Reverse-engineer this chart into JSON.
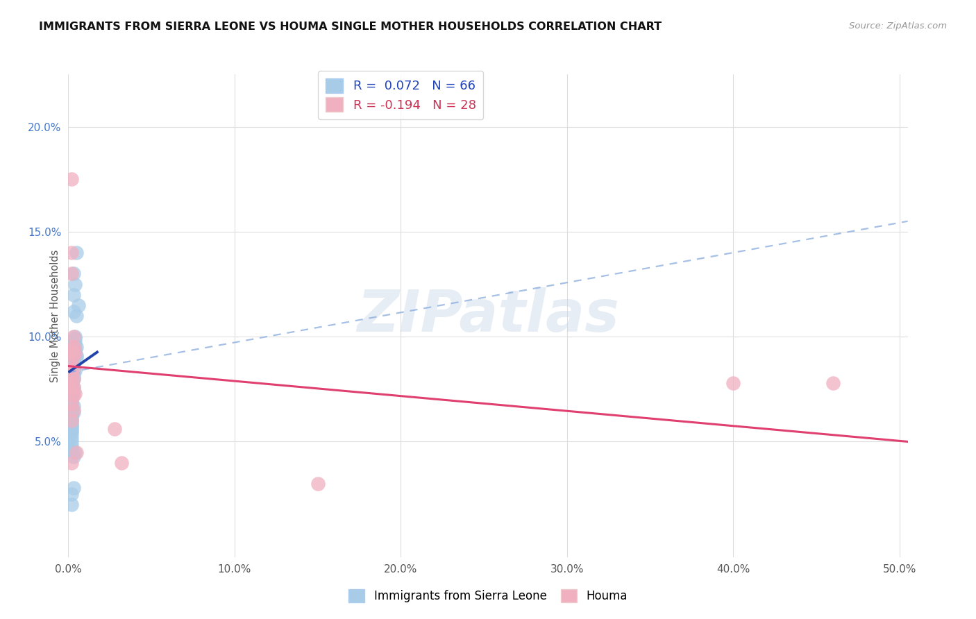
{
  "title": "IMMIGRANTS FROM SIERRA LEONE VS HOUMA SINGLE MOTHER HOUSEHOLDS CORRELATION CHART",
  "source": "Source: ZipAtlas.com",
  "ylabel": "Single Mother Households",
  "xlim": [
    0.0,
    0.505
  ],
  "ylim": [
    -0.005,
    0.225
  ],
  "xtick_vals": [
    0.0,
    0.1,
    0.2,
    0.3,
    0.4,
    0.5
  ],
  "xtick_labels": [
    "0.0%",
    "10.0%",
    "20.0%",
    "30.0%",
    "40.0%",
    "50.0%"
  ],
  "ytick_vals": [
    0.05,
    0.1,
    0.15,
    0.2
  ],
  "ytick_labels": [
    "5.0%",
    "10.0%",
    "15.0%",
    "20.0%"
  ],
  "blue_R": 0.072,
  "blue_N": 66,
  "pink_R": -0.194,
  "pink_N": 28,
  "blue_scatter_color": "#a8cce8",
  "pink_scatter_color": "#f0b0c0",
  "blue_line_color": "#2244aa",
  "blue_dash_color": "#88aadd",
  "pink_line_color": "#e04070",
  "watermark_text": "ZIPatlas",
  "legend_label_blue": "Immigrants from Sierra Leone",
  "legend_label_pink": "Houma",
  "blue_x": [
    0.002,
    0.003,
    0.002,
    0.004,
    0.005,
    0.002,
    0.003,
    0.004,
    0.002,
    0.003,
    0.002,
    0.002,
    0.003,
    0.002,
    0.003,
    0.002,
    0.003,
    0.002,
    0.002,
    0.003,
    0.002,
    0.002,
    0.003,
    0.002,
    0.004,
    0.005,
    0.002,
    0.003,
    0.002,
    0.004,
    0.002,
    0.003,
    0.002,
    0.005,
    0.002,
    0.003,
    0.002,
    0.002,
    0.004,
    0.003,
    0.002,
    0.002,
    0.003,
    0.002,
    0.004,
    0.003,
    0.002,
    0.003,
    0.004,
    0.002,
    0.005,
    0.002,
    0.003,
    0.006,
    0.002,
    0.003,
    0.002,
    0.004,
    0.002,
    0.003,
    0.005,
    0.004,
    0.003,
    0.002,
    0.002,
    0.003
  ],
  "blue_y": [
    0.08,
    0.085,
    0.09,
    0.092,
    0.095,
    0.082,
    0.088,
    0.093,
    0.078,
    0.083,
    0.075,
    0.072,
    0.076,
    0.079,
    0.087,
    0.073,
    0.081,
    0.068,
    0.07,
    0.074,
    0.065,
    0.063,
    0.067,
    0.071,
    0.084,
    0.091,
    0.077,
    0.086,
    0.069,
    0.094,
    0.062,
    0.08,
    0.066,
    0.09,
    0.06,
    0.064,
    0.058,
    0.061,
    0.097,
    0.089,
    0.055,
    0.057,
    0.085,
    0.059,
    0.099,
    0.096,
    0.056,
    0.098,
    0.1,
    0.054,
    0.11,
    0.052,
    0.112,
    0.115,
    0.05,
    0.12,
    0.048,
    0.125,
    0.046,
    0.13,
    0.14,
    0.045,
    0.043,
    0.02,
    0.025,
    0.028
  ],
  "pink_x": [
    0.002,
    0.002,
    0.002,
    0.002,
    0.003,
    0.003,
    0.002,
    0.003,
    0.004,
    0.002,
    0.003,
    0.002,
    0.003,
    0.003,
    0.004,
    0.002,
    0.003,
    0.005,
    0.002,
    0.003,
    0.003,
    0.002,
    0.4,
    0.46,
    0.002,
    0.028,
    0.032,
    0.15
  ],
  "pink_y": [
    0.175,
    0.14,
    0.13,
    0.093,
    0.1,
    0.095,
    0.088,
    0.091,
    0.092,
    0.082,
    0.08,
    0.075,
    0.076,
    0.072,
    0.073,
    0.068,
    0.065,
    0.045,
    0.078,
    0.085,
    0.095,
    0.06,
    0.078,
    0.078,
    0.04,
    0.056,
    0.04,
    0.03
  ],
  "blue_line_x0": 0.0,
  "blue_line_x_solid_end": 0.018,
  "blue_line_x1": 0.505,
  "blue_line_y0": 0.083,
  "blue_line_y_solid_end": 0.093,
  "blue_line_y1": 0.155,
  "pink_line_x0": 0.0,
  "pink_line_x1": 0.505,
  "pink_line_y0": 0.086,
  "pink_line_y1": 0.05,
  "grid_color": "#dddddd",
  "bg_color": "#ffffff",
  "title_fontsize": 11.5,
  "source_fontsize": 9.5,
  "tick_fontsize": 11,
  "legend_fontsize": 12
}
